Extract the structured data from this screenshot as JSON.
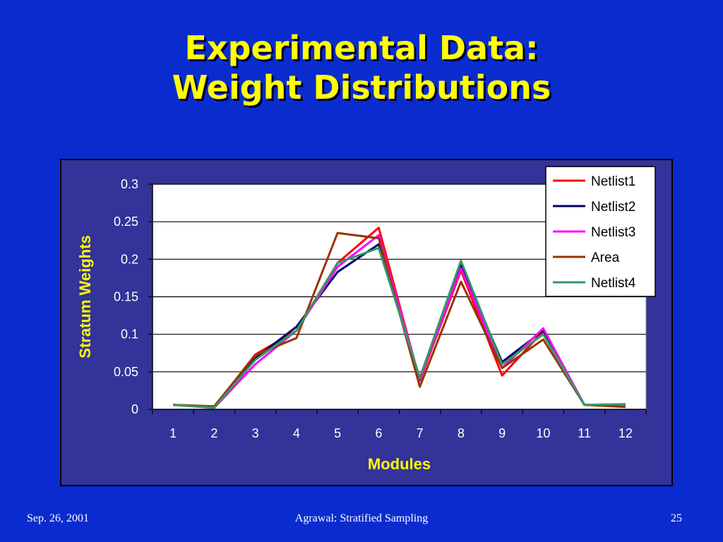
{
  "slide": {
    "title_line1": "Experimental Data:",
    "title_line2": "Weight Distributions",
    "footer_left": "Sep. 26, 2001",
    "footer_center": "Agrawal: Stratified Sampling",
    "footer_right": "25"
  },
  "colors": {
    "slide_background": "#0a2ccf",
    "title": "#ffff00",
    "chart_area": "#333399",
    "plot_area": "#ffffff",
    "axis_text_light": "#ffffff",
    "axis_title": "#ffff00"
  },
  "chart_data": {
    "type": "line",
    "title": "",
    "xlabel": "Modules",
    "ylabel": "Stratum Weights",
    "categories": [
      "1",
      "2",
      "3",
      "4",
      "5",
      "6",
      "7",
      "8",
      "9",
      "10",
      "11",
      "12"
    ],
    "ylim": [
      0,
      0.3
    ],
    "yticks": [
      "0",
      "0.05",
      "0.1",
      "0.15",
      "0.2",
      "0.25",
      "0.3"
    ],
    "grid": true,
    "legend_position": "top-right",
    "series": [
      {
        "name": "Netlist1",
        "color": "#ff0000",
        "values": [
          0.006,
          0.003,
          0.073,
          0.105,
          0.195,
          0.242,
          0.038,
          0.185,
          0.045,
          0.104,
          0.006,
          0.006
        ]
      },
      {
        "name": "Netlist2",
        "color": "#000066",
        "values": [
          0.006,
          0.002,
          0.068,
          0.11,
          0.183,
          0.22,
          0.04,
          0.192,
          0.063,
          0.105,
          0.006,
          0.006
        ]
      },
      {
        "name": "Netlist3",
        "color": "#ff00ff",
        "values": [
          0.006,
          0.002,
          0.06,
          0.105,
          0.19,
          0.232,
          0.04,
          0.188,
          0.055,
          0.108,
          0.006,
          0.006
        ]
      },
      {
        "name": "Area",
        "color": "#993300",
        "values": [
          0.006,
          0.004,
          0.072,
          0.095,
          0.235,
          0.228,
          0.03,
          0.17,
          0.055,
          0.093,
          0.006,
          0.003
        ]
      },
      {
        "name": "Netlist4",
        "color": "#339966",
        "values": [
          0.006,
          0.002,
          0.066,
          0.105,
          0.195,
          0.215,
          0.042,
          0.198,
          0.06,
          0.1,
          0.006,
          0.007
        ]
      }
    ]
  }
}
